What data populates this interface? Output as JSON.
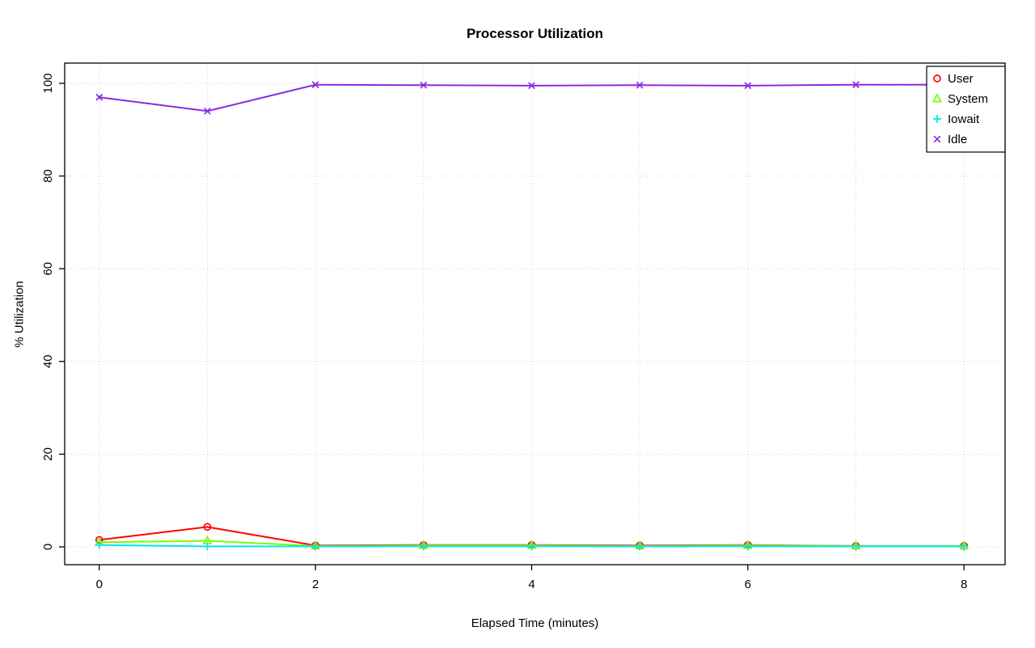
{
  "figure": {
    "background": "#ffffff"
  },
  "chart_data": {
    "type": "line",
    "title": "Processor Utilization",
    "xlabel": "Elapsed Time (minutes)",
    "ylabel": "% Utilization",
    "x": [
      0,
      1,
      2,
      3,
      4,
      5,
      6,
      7,
      8
    ],
    "series": [
      {
        "name": "User",
        "color": "#FF0000",
        "marker": "circle",
        "values": [
          1.5,
          4.3,
          0.3,
          0.4,
          0.4,
          0.3,
          0.4,
          0.2,
          0.2
        ]
      },
      {
        "name": "System",
        "color": "#7CFC00",
        "marker": "triangle",
        "values": [
          1.0,
          1.3,
          0.2,
          0.3,
          0.3,
          0.2,
          0.3,
          0.2,
          0.2
        ]
      },
      {
        "name": "Iowait",
        "color": "#00E5EE",
        "marker": "plus",
        "values": [
          0.4,
          0.1,
          0.1,
          0.1,
          0.1,
          0.1,
          0.1,
          0.1,
          0.1
        ]
      },
      {
        "name": "Idle",
        "color": "#8A2BE2",
        "marker": "x",
        "values": [
          97,
          94,
          99.7,
          99.6,
          99.5,
          99.6,
          99.5,
          99.7,
          99.7
        ]
      }
    ],
    "x_ticks": [
      0,
      2,
      4,
      6,
      8
    ],
    "y_ticks": [
      0,
      20,
      40,
      60,
      80,
      100
    ],
    "x_gridlines": [
      0,
      1,
      2,
      3,
      4,
      5,
      6,
      7,
      8
    ],
    "y_gridlines": [
      0,
      20,
      40,
      60,
      80,
      100
    ],
    "xlim": [
      -0.32,
      8.38
    ],
    "ylim": [
      -3.84,
      104.36
    ],
    "grid_on": true,
    "grid_color": "#d3d3d3",
    "axis_color": "#000000",
    "legend_position": "top-right",
    "legend": [
      "User",
      "System",
      "Iowait",
      "Idle"
    ]
  }
}
